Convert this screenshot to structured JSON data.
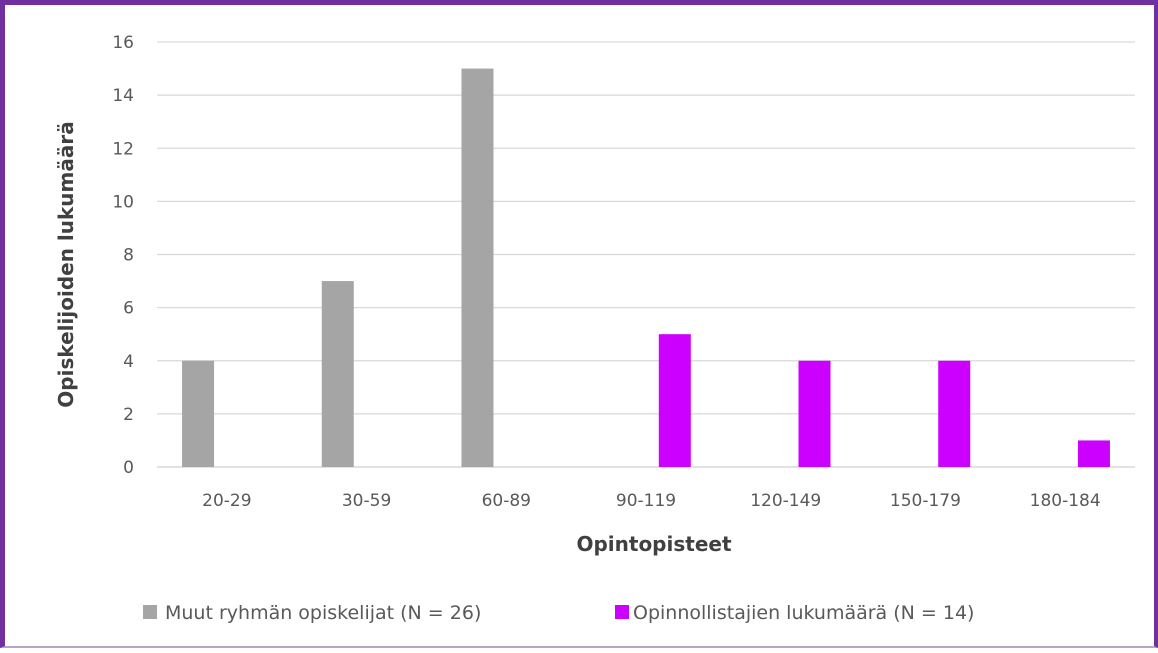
{
  "colors": {
    "series_0": "#a5a5a5",
    "series_1": "#cc00ff",
    "grid": "#d9d9d9",
    "frame": "#7030a0"
  },
  "chart_data": {
    "type": "bar",
    "categories": [
      "20-29",
      "30-59",
      "60-89",
      "90-119",
      "120-149",
      "150-179",
      "180-184"
    ],
    "series": [
      {
        "name": "Muut ryhmän opiskelijat (N = 26)",
        "values": [
          4,
          7,
          15,
          null,
          null,
          null,
          null
        ]
      },
      {
        "name": "Opinnollistajien lukumäärä (N = 14)",
        "values": [
          null,
          null,
          null,
          5,
          4,
          4,
          1
        ]
      }
    ],
    "title": "",
    "xlabel": "Opintopisteet",
    "ylabel": "Opiskelijoiden lukumäärä",
    "ylim": [
      0,
      16
    ],
    "yticks": [
      "0",
      "2",
      "4",
      "6",
      "8",
      "10",
      "12",
      "14",
      "16"
    ],
    "grid": true,
    "legend": "bottom"
  }
}
